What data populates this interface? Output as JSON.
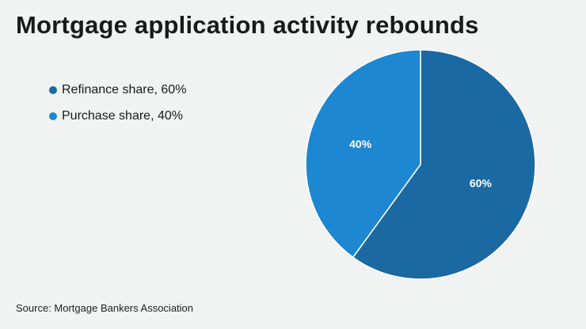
{
  "chart_data": {
    "type": "pie",
    "title": "Mortgage application activity rebounds",
    "slices": [
      {
        "name": "Refinance share, 60%",
        "value": 60,
        "label": "60%",
        "color": "#1b69a2"
      },
      {
        "name": "Purchase share, 40%",
        "value": 40,
        "label": "40%",
        "color": "#1d87d1"
      }
    ],
    "legend_position": "top-left",
    "start_angle": "12 o'clock",
    "direction": "clockwise"
  },
  "source": "Source: Mortgage Bankers Association"
}
